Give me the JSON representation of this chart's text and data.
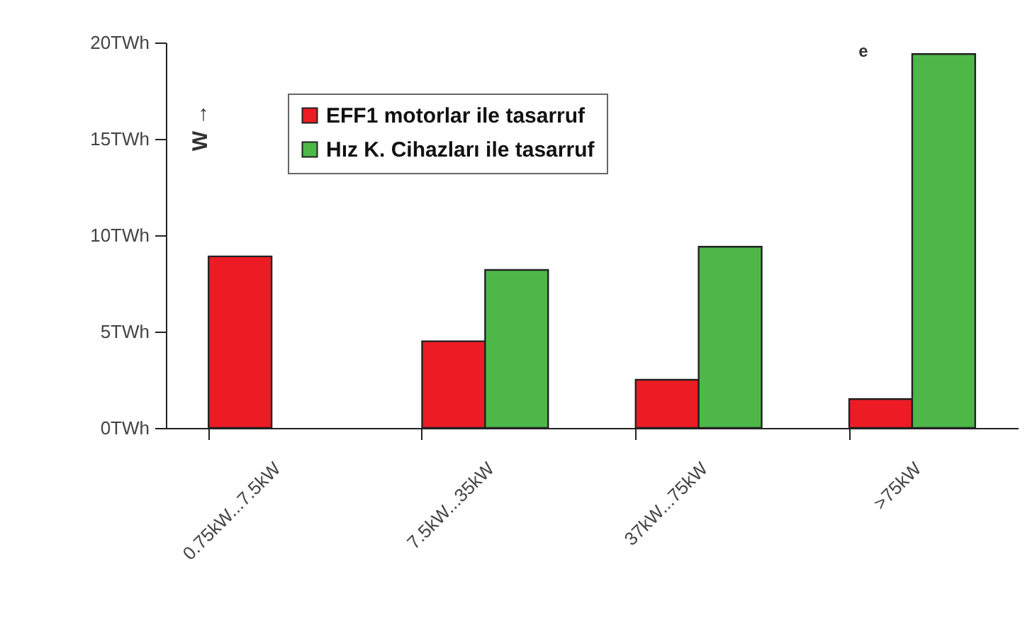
{
  "chart_data": {
    "type": "bar",
    "categories": [
      "0.75kW...7.5kW",
      "7.5kW...35kW",
      "37kW...75kW",
      ">75kW"
    ],
    "series": [
      {
        "name": "EFF1 motorlar ile tasarruf",
        "color": "#ed1c24",
        "values": [
          8.9,
          4.5,
          2.5,
          1.5
        ]
      },
      {
        "name": "Hız K. Cihazları ile tasarruf",
        "color": "#4db848",
        "values": [
          null,
          8.2,
          9.4,
          19.4
        ]
      }
    ],
    "ylim": [
      0,
      20
    ],
    "yticks": [
      {
        "value": 0,
        "label": "0TWh"
      },
      {
        "value": 5,
        "label": "5TWh"
      },
      {
        "value": 10,
        "label": "10TWh"
      },
      {
        "value": 15,
        "label": "15TWh"
      },
      {
        "value": 20,
        "label": "20TWh"
      }
    ],
    "annotations": [
      "W →",
      "e"
    ],
    "legend": "top left",
    "grid": false
  }
}
